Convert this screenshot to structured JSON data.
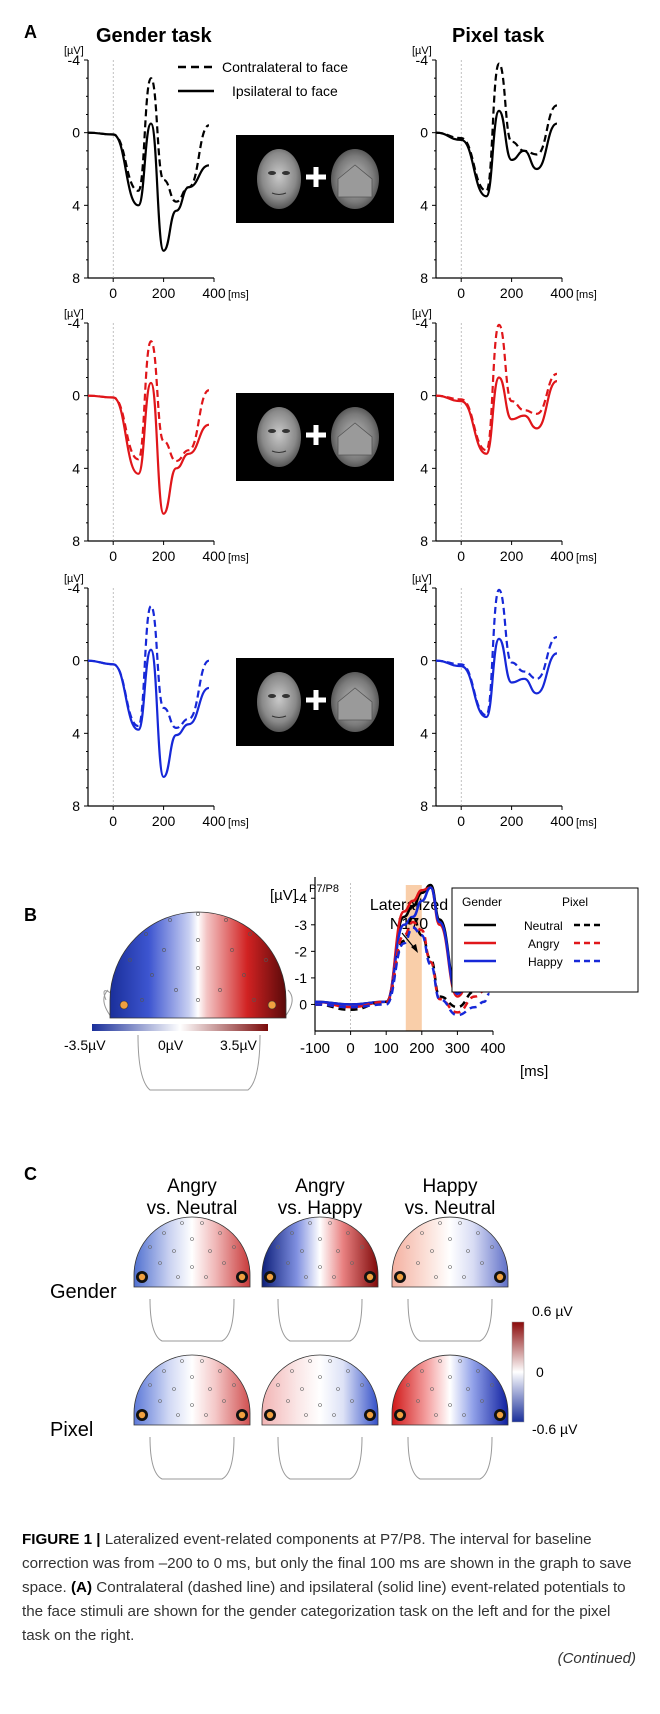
{
  "colors": {
    "gender_neutral": "#000000",
    "angry": "#e0161a",
    "happy": "#1628d8",
    "highlight": "#f8c9a0"
  },
  "panel_a": {
    "letter": "A",
    "gender_title": "Gender task",
    "pixel_title": "Pixel task",
    "legend_dashed": "Contralateral to face",
    "legend_solid": "Ipsilateral to face",
    "unit_y": "[µV]",
    "unit_x": "[ms]",
    "y_ticks": [
      "-4",
      "0",
      "4",
      "8"
    ],
    "x_ticks": [
      "0",
      "200",
      "400"
    ]
  },
  "panel_b": {
    "letter": "B",
    "unit_y": "[µV]",
    "unit_x": "[ms]",
    "electrode": "P7/P8",
    "annotation_line1": "Lateralized",
    "annotation_line2": "N170",
    "legend_gender": "Gender",
    "legend_pixel": "Pixel",
    "legend_items": [
      "Neutral",
      "Angry",
      "Happy"
    ],
    "y_ticks": [
      "-4",
      "-3",
      "-2",
      "-1",
      "0"
    ],
    "x_ticks": [
      "-100",
      "0",
      "100",
      "200",
      "300",
      "400"
    ],
    "scale_min": "-3.5µV",
    "scale_mid": "0µV",
    "scale_max": "3.5µV"
  },
  "panel_c": {
    "letter": "C",
    "col1_line1": "Angry",
    "col1_line2": "vs. Neutral",
    "col2_line1": "Angry",
    "col2_line2": "vs. Happy",
    "col3_line1": "Happy",
    "col3_line2": "vs. Neutral",
    "row1": "Gender",
    "row2": "Pixel",
    "scale_max": "0.6 µV",
    "scale_mid": "0",
    "scale_min": "-0.6 µV"
  },
  "caption": {
    "label": "FIGURE 1 |",
    "text1": " Lateralized event-related components at P7/P8. The interval for baseline correction was from –200 to 0 ms, but only the final 100 ms are shown in the graph to save space. ",
    "bold_a": "(A)",
    "text2": " Contralateral (dashed line) and ipsilateral (solid line) event-related potentials to the face stimuli are shown for the gender categorization task on the left and for the pixel task on the right.",
    "continued": "(Continued)"
  },
  "chart_data": [
    {
      "type": "line",
      "panel": "A-gender-neutral",
      "xlim": [
        -100,
        400
      ],
      "ylim": [
        -4,
        8
      ],
      "x": [
        -100,
        0,
        100,
        150,
        200,
        250,
        300,
        380
      ],
      "series": [
        {
          "name": "Contralateral to face",
          "values": [
            0,
            0.1,
            3.2,
            -3.0,
            2.6,
            3.8,
            3.0,
            -0.4
          ]
        },
        {
          "name": "Ipsilateral to face",
          "values": [
            0,
            0.1,
            4.0,
            -0.5,
            6.5,
            4.3,
            3.0,
            1.8
          ]
        }
      ]
    },
    {
      "type": "line",
      "panel": "A-pixel-neutral",
      "xlim": [
        -100,
        400
      ],
      "ylim": [
        -4,
        8
      ],
      "x": [
        -100,
        0,
        100,
        150,
        200,
        250,
        300,
        380
      ],
      "series": [
        {
          "name": "Contralateral to face",
          "values": [
            0,
            0.3,
            3.2,
            -3.8,
            0.5,
            1.0,
            1.2,
            -1.5
          ]
        },
        {
          "name": "Ipsilateral to face",
          "values": [
            0,
            0.4,
            3.5,
            -1.2,
            1.5,
            1.0,
            2.0,
            -0.5
          ]
        }
      ]
    },
    {
      "type": "line",
      "panel": "A-gender-angry",
      "xlim": [
        -100,
        400
      ],
      "ylim": [
        -4,
        8
      ],
      "x": [
        -100,
        0,
        100,
        150,
        200,
        250,
        300,
        380
      ],
      "series": [
        {
          "name": "Contralateral to face",
          "values": [
            0,
            0.1,
            3.5,
            -3.0,
            2.5,
            3.6,
            3.0,
            -0.3
          ]
        },
        {
          "name": "Ipsilateral to face",
          "values": [
            0,
            0.1,
            4.3,
            -0.7,
            6.5,
            4.0,
            3.2,
            1.6
          ]
        }
      ]
    },
    {
      "type": "line",
      "panel": "A-pixel-angry",
      "xlim": [
        -100,
        400
      ],
      "ylim": [
        -4,
        8
      ],
      "x": [
        -100,
        0,
        100,
        150,
        200,
        250,
        300,
        380
      ],
      "series": [
        {
          "name": "Contralateral to face",
          "values": [
            0,
            0.2,
            3.0,
            -3.9,
            0.3,
            0.8,
            1.0,
            -1.2
          ]
        },
        {
          "name": "Ipsilateral to face",
          "values": [
            0,
            0.3,
            3.2,
            -1.0,
            1.3,
            1.1,
            1.8,
            -0.8
          ]
        }
      ]
    },
    {
      "type": "line",
      "panel": "A-gender-happy",
      "xlim": [
        -100,
        400
      ],
      "ylim": [
        -4,
        8
      ],
      "x": [
        -100,
        0,
        100,
        150,
        200,
        250,
        300,
        380
      ],
      "series": [
        {
          "name": "Contralateral to face",
          "values": [
            0,
            0.2,
            3.6,
            -3.0,
            2.6,
            3.7,
            3.2,
            0
          ]
        },
        {
          "name": "Ipsilateral to face",
          "values": [
            0,
            0.2,
            3.8,
            -0.6,
            6.4,
            4.1,
            3.5,
            1.5
          ]
        }
      ]
    },
    {
      "type": "line",
      "panel": "A-pixel-happy",
      "xlim": [
        -100,
        400
      ],
      "ylim": [
        -4,
        8
      ],
      "x": [
        -100,
        0,
        100,
        150,
        200,
        250,
        300,
        380
      ],
      "series": [
        {
          "name": "Contralateral to face",
          "values": [
            0,
            0.2,
            3.0,
            -3.9,
            0.1,
            0.6,
            1.0,
            -1.3
          ]
        },
        {
          "name": "Ipsilateral to face",
          "values": [
            0,
            0.3,
            3.1,
            -1.2,
            1.2,
            1.0,
            1.8,
            -0.4
          ]
        }
      ]
    },
    {
      "type": "line",
      "panel": "B",
      "xlim": [
        -100,
        400
      ],
      "ylim": [
        -4.8,
        1
      ],
      "x": [
        -100,
        0,
        100,
        150,
        175,
        200,
        225,
        250,
        300,
        350,
        375,
        390
      ],
      "highlight_x": [
        155,
        200
      ],
      "series": [
        {
          "name": "Neutral",
          "task": "Gender",
          "values": [
            -0.1,
            0,
            -0.1,
            -3.3,
            -3.7,
            -4.2,
            -4.5,
            -3.2,
            -0.5,
            -1.8,
            -2.8,
            -2.3
          ]
        },
        {
          "name": "Angry",
          "task": "Gender",
          "values": [
            -0.1,
            0.1,
            -0.1,
            -3.5,
            -3.9,
            -4.3,
            -4.4,
            -3.0,
            -0.3,
            -1.6,
            -2.9,
            -2.4
          ]
        },
        {
          "name": "Happy",
          "task": "Gender",
          "values": [
            -0.1,
            0,
            -0.1,
            -3.0,
            -3.3,
            -3.9,
            -4.4,
            -3.1,
            -0.4,
            -1.6,
            -2.6,
            -2.1
          ]
        },
        {
          "name": "Neutral",
          "task": "Pixel",
          "values": [
            0,
            0.2,
            -0.1,
            -2.4,
            -3.3,
            -2.6,
            -1.7,
            -0.3,
            0.1,
            -0.5,
            -0.8,
            -1.0
          ]
        },
        {
          "name": "Angry",
          "task": "Pixel",
          "values": [
            0,
            0.1,
            -0.1,
            -2.6,
            -3.1,
            -2.8,
            -1.6,
            -0.2,
            0.3,
            -0.3,
            -0.5,
            -0.7
          ]
        },
        {
          "name": "Happy",
          "task": "Pixel",
          "values": [
            0,
            0.1,
            0,
            -2.3,
            -2.9,
            -2.6,
            -1.5,
            -0.2,
            0.4,
            0.1,
            -0.1,
            -0.4
          ]
        }
      ]
    }
  ]
}
